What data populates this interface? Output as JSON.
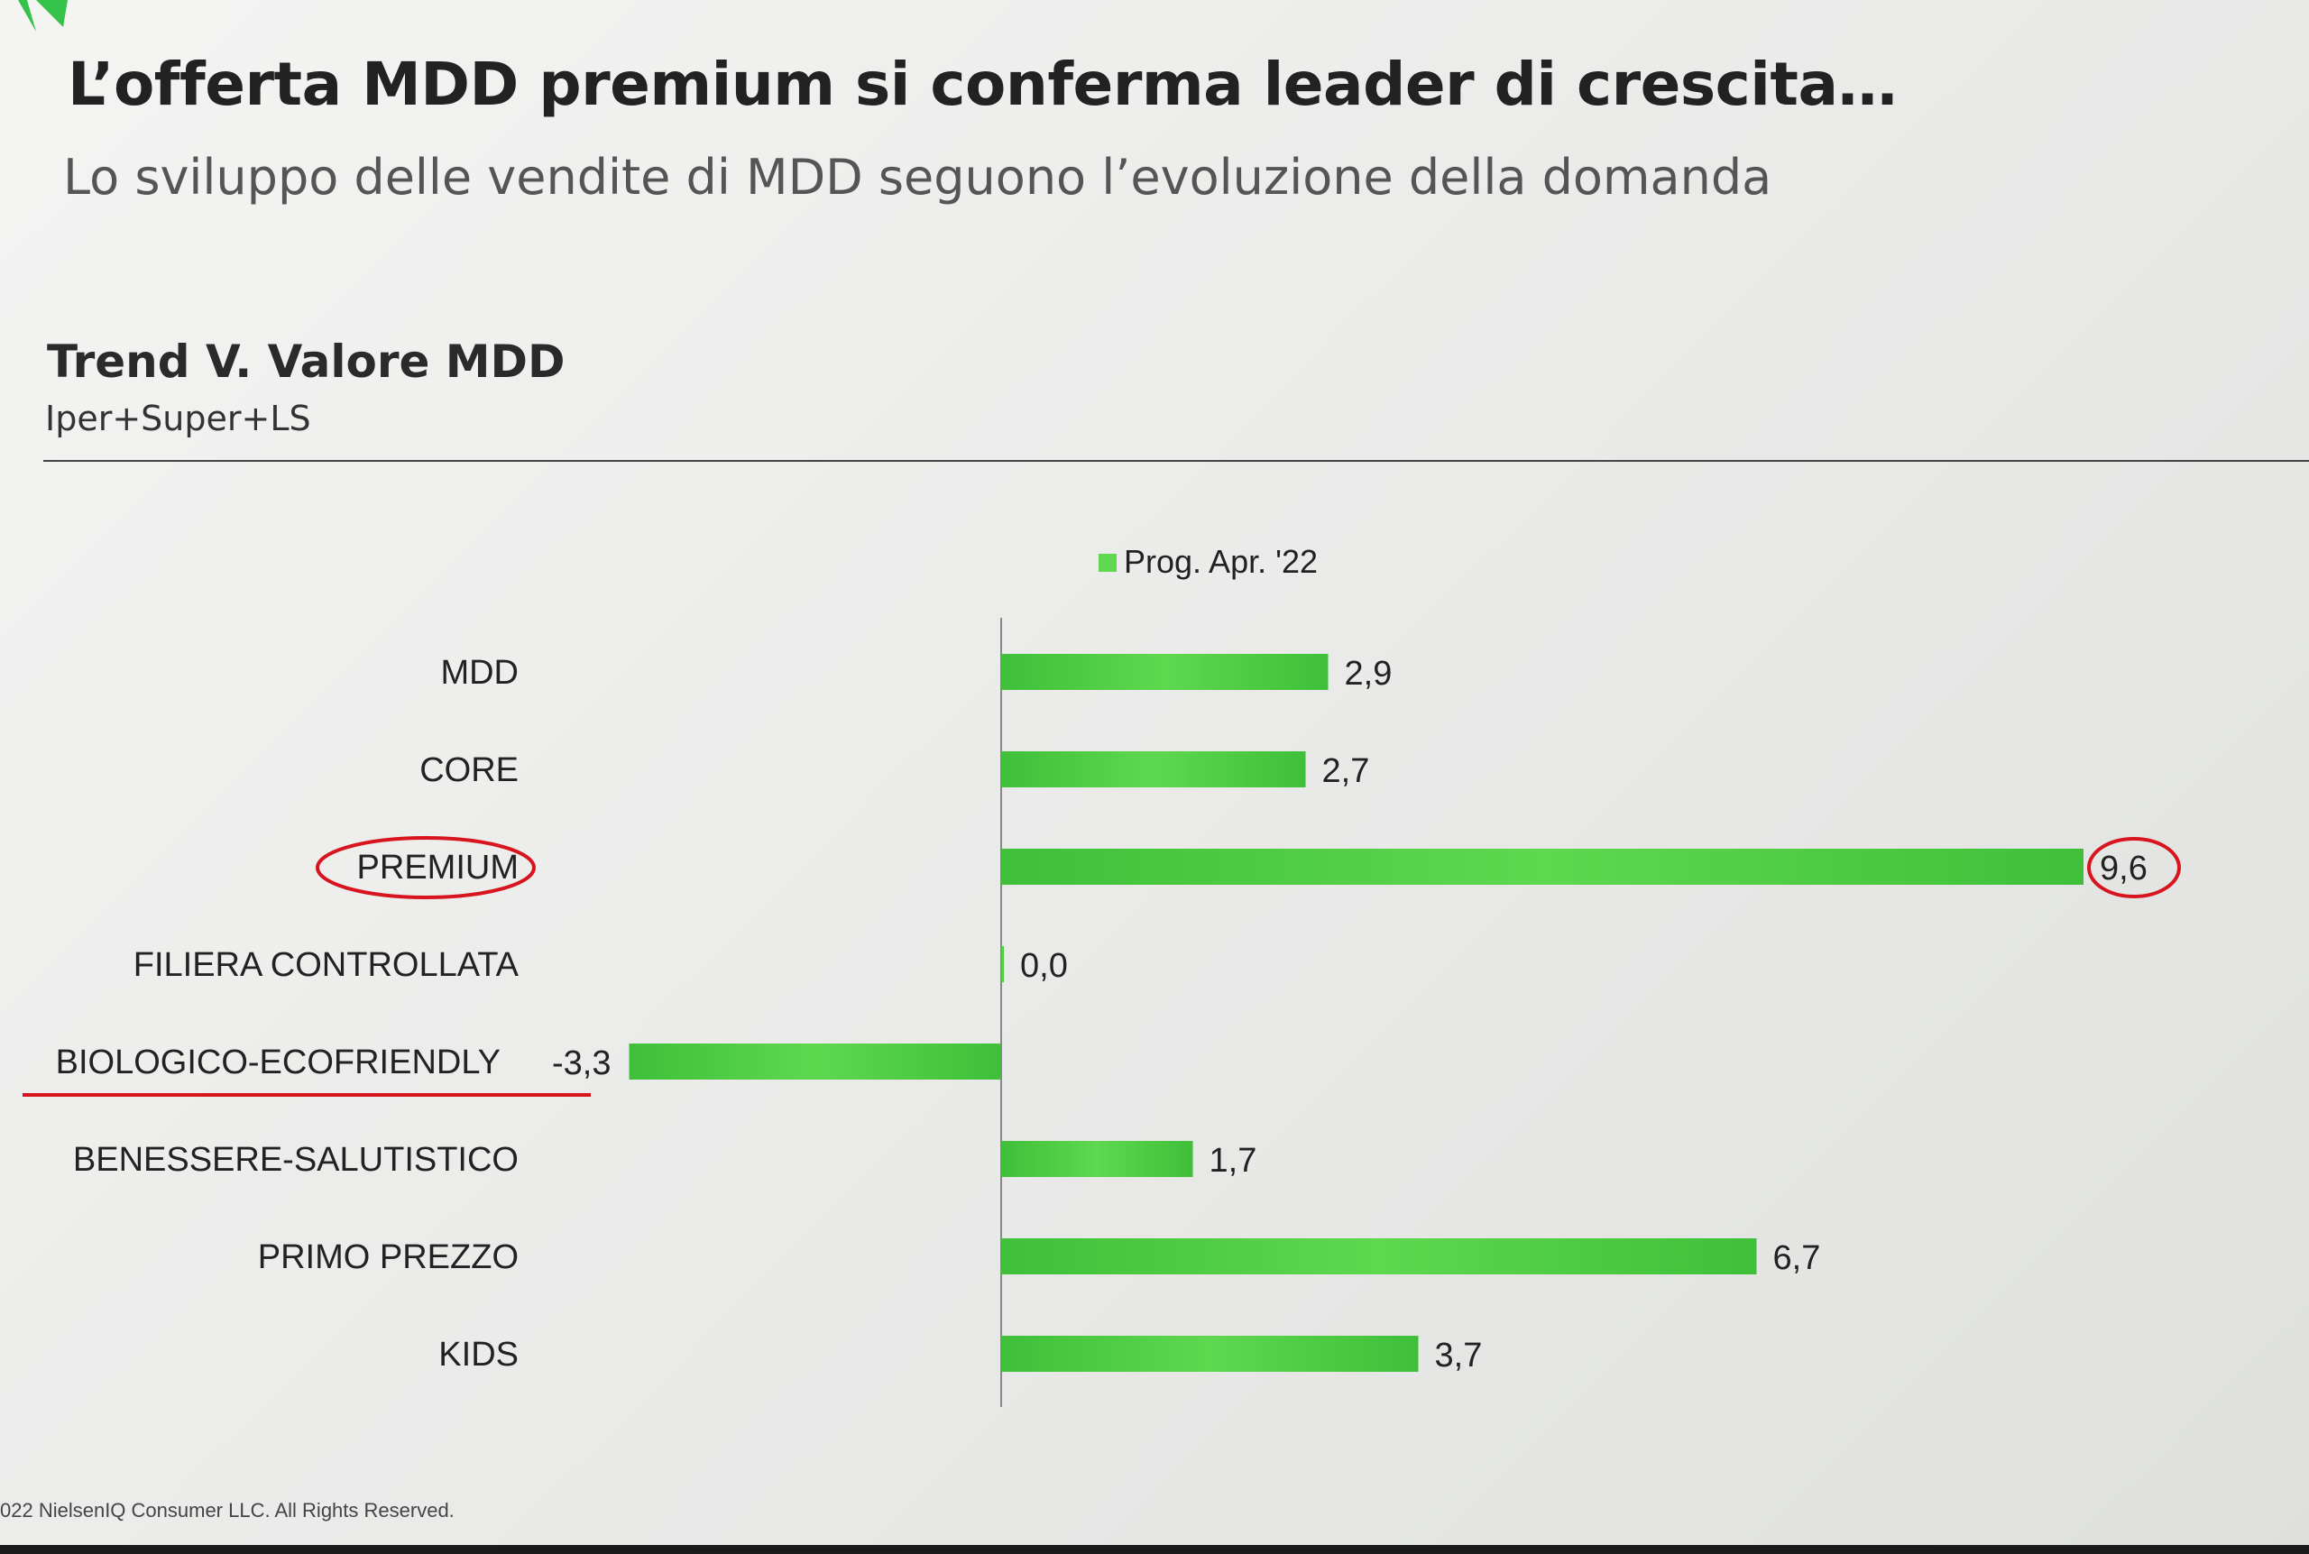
{
  "header": {
    "title": "L’offerta MDD premium si conferma leader di crescita…",
    "subtitle": "Lo sviluppo delle vendite di MDD seguono l’evoluzione della domanda"
  },
  "footer": {
    "copyright": "022 NielsenIQ Consumer LLC. All Rights Reserved."
  },
  "colors": {
    "bar": "#5ed84f",
    "bar_dark": "#3fbf3a",
    "highlight": "#d8141e",
    "axis": "#888888"
  },
  "chart_data": {
    "type": "bar",
    "orientation": "horizontal",
    "title": "Trend V. Valore MDD",
    "subtitle": "Iper+Super+LS",
    "categories": [
      "MDD",
      "CORE",
      "PREMIUM",
      "FILIERA CONTROLLATA",
      "BIOLOGICO-ECOFRIENDLY",
      "BENESSERE-SALUTISTICO",
      "PRIMO PREZZO",
      "KIDS"
    ],
    "series": [
      {
        "name": "Prog. Apr. '22",
        "values": [
          2.9,
          2.7,
          9.6,
          0.0,
          -3.3,
          1.7,
          6.7,
          3.7
        ],
        "labels": [
          "2,9",
          "2,7",
          "9,6",
          "0,0",
          "-3,3",
          "1,7",
          "6,7",
          "3,7"
        ]
      }
    ],
    "xlim": [
      -3.5,
      10.2
    ],
    "grid": false,
    "legend": "top-center",
    "annotations": {
      "circled_category": "PREMIUM",
      "circled_value": "9,6",
      "underlined_category": "BIOLOGICO-ECOFRIENDLY"
    }
  }
}
